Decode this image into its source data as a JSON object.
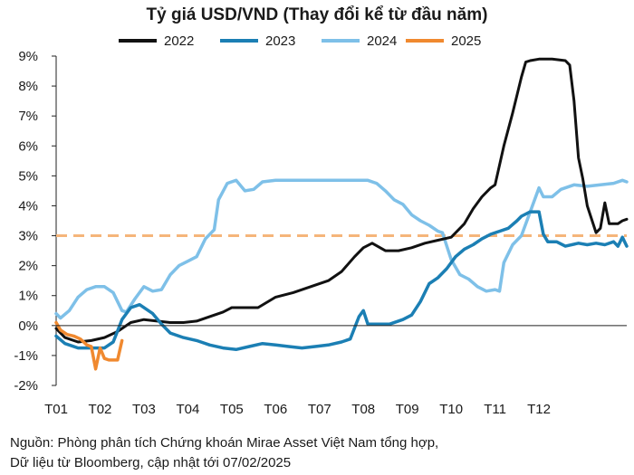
{
  "chart_data": {
    "type": "line",
    "title": "Tỷ giá USD/VND (Thay đổi kể từ đầu năm)",
    "xlabel": "",
    "ylabel": "",
    "unit": "%",
    "x_range_months": [
      0,
      12
    ],
    "ylim": [
      -2,
      9
    ],
    "yticks": [
      -2,
      -1,
      0,
      1,
      2,
      3,
      4,
      5,
      6,
      7,
      8,
      9
    ],
    "ytick_labels": [
      "-2%",
      "-1%",
      "0%",
      "1%",
      "2%",
      "3%",
      "4%",
      "5%",
      "6%",
      "7%",
      "8%",
      "9%"
    ],
    "categories": [
      "T01",
      "T02",
      "T03",
      "T04",
      "T05",
      "T06",
      "T07",
      "T08",
      "T09",
      "T10",
      "T11",
      "T12"
    ],
    "series": [
      {
        "name": "2022",
        "color": "#111111",
        "points": [
          [
            0,
            -0.1
          ],
          [
            0.2,
            -0.4
          ],
          [
            0.5,
            -0.55
          ],
          [
            0.8,
            -0.5
          ],
          [
            1.1,
            -0.4
          ],
          [
            1.4,
            -0.2
          ],
          [
            1.7,
            0.1
          ],
          [
            2.0,
            0.2
          ],
          [
            2.3,
            0.15
          ],
          [
            2.6,
            0.1
          ],
          [
            2.9,
            0.1
          ],
          [
            3.2,
            0.15
          ],
          [
            3.5,
            0.3
          ],
          [
            3.8,
            0.45
          ],
          [
            4.0,
            0.6
          ],
          [
            4.3,
            0.6
          ],
          [
            4.6,
            0.6
          ],
          [
            5.0,
            0.95
          ],
          [
            5.4,
            1.1
          ],
          [
            5.8,
            1.3
          ],
          [
            6.2,
            1.5
          ],
          [
            6.5,
            1.8
          ],
          [
            6.8,
            2.3
          ],
          [
            7.0,
            2.6
          ],
          [
            7.2,
            2.75
          ],
          [
            7.5,
            2.5
          ],
          [
            7.8,
            2.5
          ],
          [
            8.1,
            2.6
          ],
          [
            8.4,
            2.75
          ],
          [
            8.7,
            2.85
          ],
          [
            9.0,
            2.95
          ],
          [
            9.3,
            3.4
          ],
          [
            9.5,
            3.9
          ],
          [
            9.7,
            4.3
          ],
          [
            9.9,
            4.6
          ],
          [
            10.0,
            4.7
          ],
          [
            10.2,
            6.0
          ],
          [
            10.4,
            7.1
          ],
          [
            10.6,
            8.3
          ],
          [
            10.7,
            8.8
          ],
          [
            10.8,
            8.85
          ],
          [
            11.0,
            8.9
          ],
          [
            11.3,
            8.9
          ],
          [
            11.6,
            8.85
          ],
          [
            11.7,
            8.7
          ],
          [
            11.8,
            7.5
          ],
          [
            11.9,
            5.6
          ],
          [
            12.0,
            4.9
          ],
          [
            12.1,
            4.0
          ],
          [
            12.3,
            3.1
          ],
          [
            12.4,
            3.25
          ],
          [
            12.5,
            4.1
          ],
          [
            12.6,
            3.4
          ],
          [
            12.8,
            3.4
          ],
          [
            12.9,
            3.5
          ],
          [
            13.0,
            3.55
          ]
        ]
      },
      {
        "name": "2023",
        "color": "#1b7fb4",
        "points": [
          [
            0,
            -0.35
          ],
          [
            0.2,
            -0.6
          ],
          [
            0.5,
            -0.75
          ],
          [
            0.8,
            -0.75
          ],
          [
            1.1,
            -0.75
          ],
          [
            1.3,
            -0.55
          ],
          [
            1.5,
            0.2
          ],
          [
            1.7,
            0.6
          ],
          [
            1.9,
            0.7
          ],
          [
            2.2,
            0.4
          ],
          [
            2.4,
            0.05
          ],
          [
            2.6,
            -0.25
          ],
          [
            2.9,
            -0.4
          ],
          [
            3.2,
            -0.5
          ],
          [
            3.5,
            -0.65
          ],
          [
            3.8,
            -0.75
          ],
          [
            4.1,
            -0.8
          ],
          [
            4.4,
            -0.7
          ],
          [
            4.7,
            -0.6
          ],
          [
            5.0,
            -0.65
          ],
          [
            5.3,
            -0.7
          ],
          [
            5.6,
            -0.75
          ],
          [
            5.9,
            -0.7
          ],
          [
            6.2,
            -0.65
          ],
          [
            6.5,
            -0.55
          ],
          [
            6.7,
            -0.45
          ],
          [
            6.9,
            0.3
          ],
          [
            7.0,
            0.5
          ],
          [
            7.1,
            0.05
          ],
          [
            7.3,
            0.05
          ],
          [
            7.6,
            0.05
          ],
          [
            7.9,
            0.2
          ],
          [
            8.1,
            0.35
          ],
          [
            8.3,
            0.8
          ],
          [
            8.5,
            1.4
          ],
          [
            8.7,
            1.6
          ],
          [
            8.9,
            1.9
          ],
          [
            9.1,
            2.3
          ],
          [
            9.3,
            2.55
          ],
          [
            9.5,
            2.7
          ],
          [
            9.7,
            2.9
          ],
          [
            9.9,
            3.05
          ],
          [
            10.1,
            3.15
          ],
          [
            10.3,
            3.25
          ],
          [
            10.5,
            3.5
          ],
          [
            10.6,
            3.65
          ],
          [
            10.8,
            3.8
          ],
          [
            11.0,
            3.8
          ],
          [
            11.1,
            3.05
          ],
          [
            11.2,
            2.8
          ],
          [
            11.4,
            2.8
          ],
          [
            11.6,
            2.65
          ],
          [
            11.9,
            2.75
          ],
          [
            12.1,
            2.7
          ],
          [
            12.3,
            2.75
          ],
          [
            12.5,
            2.7
          ],
          [
            12.7,
            2.8
          ],
          [
            12.8,
            2.65
          ],
          [
            12.9,
            2.95
          ],
          [
            13.0,
            2.65
          ]
        ]
      },
      {
        "name": "2024",
        "color": "#7ec0e8",
        "points": [
          [
            0,
            0.4
          ],
          [
            0.1,
            0.25
          ],
          [
            0.3,
            0.5
          ],
          [
            0.5,
            0.95
          ],
          [
            0.7,
            1.2
          ],
          [
            0.9,
            1.3
          ],
          [
            1.1,
            1.3
          ],
          [
            1.3,
            1.1
          ],
          [
            1.4,
            0.8
          ],
          [
            1.5,
            0.5
          ],
          [
            1.6,
            0.45
          ],
          [
            1.8,
            0.9
          ],
          [
            2.0,
            1.3
          ],
          [
            2.2,
            1.15
          ],
          [
            2.4,
            1.2
          ],
          [
            2.6,
            1.7
          ],
          [
            2.8,
            2.0
          ],
          [
            3.0,
            2.15
          ],
          [
            3.2,
            2.3
          ],
          [
            3.4,
            2.9
          ],
          [
            3.6,
            3.2
          ],
          [
            3.7,
            4.2
          ],
          [
            3.9,
            4.75
          ],
          [
            4.1,
            4.85
          ],
          [
            4.3,
            4.5
          ],
          [
            4.5,
            4.55
          ],
          [
            4.7,
            4.8
          ],
          [
            5.0,
            4.85
          ],
          [
            5.3,
            4.85
          ],
          [
            5.6,
            4.85
          ],
          [
            5.9,
            4.85
          ],
          [
            6.2,
            4.85
          ],
          [
            6.5,
            4.85
          ],
          [
            6.8,
            4.85
          ],
          [
            7.1,
            4.85
          ],
          [
            7.3,
            4.75
          ],
          [
            7.5,
            4.5
          ],
          [
            7.7,
            4.2
          ],
          [
            7.9,
            4.05
          ],
          [
            8.1,
            3.7
          ],
          [
            8.3,
            3.5
          ],
          [
            8.5,
            3.35
          ],
          [
            8.7,
            3.15
          ],
          [
            8.8,
            3.1
          ],
          [
            9.0,
            2.2
          ],
          [
            9.2,
            1.7
          ],
          [
            9.4,
            1.55
          ],
          [
            9.6,
            1.3
          ],
          [
            9.8,
            1.15
          ],
          [
            10.0,
            1.2
          ],
          [
            10.1,
            1.15
          ],
          [
            10.2,
            2.1
          ],
          [
            10.4,
            2.7
          ],
          [
            10.6,
            3.0
          ],
          [
            10.8,
            3.8
          ],
          [
            11.0,
            4.6
          ],
          [
            11.1,
            4.3
          ],
          [
            11.3,
            4.3
          ],
          [
            11.5,
            4.55
          ],
          [
            11.8,
            4.7
          ],
          [
            12.1,
            4.65
          ],
          [
            12.4,
            4.7
          ],
          [
            12.7,
            4.75
          ],
          [
            12.9,
            4.85
          ],
          [
            13.0,
            4.8
          ]
        ]
      },
      {
        "name": "2025",
        "color": "#f0892f",
        "points": [
          [
            0,
            0.1
          ],
          [
            0.1,
            -0.15
          ],
          [
            0.25,
            -0.3
          ],
          [
            0.4,
            -0.35
          ],
          [
            0.55,
            -0.45
          ],
          [
            0.7,
            -0.65
          ],
          [
            0.8,
            -0.7
          ],
          [
            0.9,
            -1.45
          ],
          [
            1.0,
            -0.75
          ],
          [
            1.1,
            -1.1
          ],
          [
            1.2,
            -1.15
          ],
          [
            1.4,
            -1.15
          ],
          [
            1.5,
            -0.5
          ]
        ]
      }
    ],
    "reference_line": {
      "value": 3.0,
      "style": "dashed",
      "color": "#f5b57a"
    }
  },
  "source": {
    "line1": "Nguồn: Phòng phân tích Chứng khoán Mirae Asset Việt Nam tổng hợp,",
    "line2": "Dữ liệu từ Bloomberg, cập nhật tới 07/02/2025"
  }
}
